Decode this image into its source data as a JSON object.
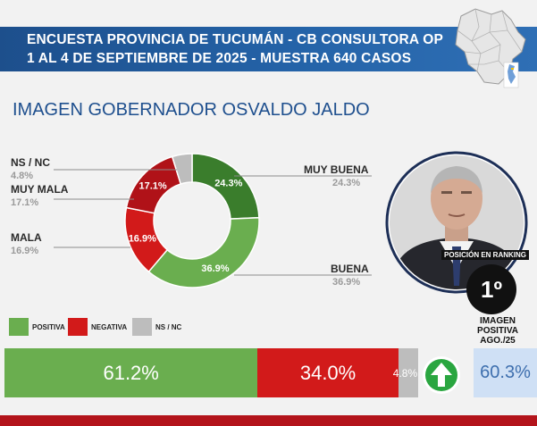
{
  "header": {
    "line1": "ENCUESTA PROVINCIA DE TUCUMÁN - CB CONSULTORA OP",
    "line2": "1 AL 4 DE SEPTIEMBRE DE 2025 - MUESTRA 640 CASOS"
  },
  "headline": "IMAGEN GOBERNADOR  OSVALDO JALDO",
  "colors": {
    "muy_buena": "#3a7d2c",
    "buena": "#6aae4f",
    "mala": "#d21a1a",
    "muy_mala": "#b01218",
    "ns_nc": "#bdbdbd",
    "header_blue": "#1d4f8c",
    "side_value_bg": "#cfe0f5"
  },
  "chart_data": [
    {
      "type": "pie",
      "variant": "donut",
      "categories": [
        "MUY BUENA",
        "BUENA",
        "MALA",
        "MUY MALA",
        "NS / NC"
      ],
      "values": [
        24.3,
        36.9,
        16.9,
        17.1,
        4.8
      ],
      "value_labels": [
        "24.3%",
        "36.9%",
        "16.9%",
        "17.1%",
        "4.8%"
      ]
    },
    {
      "type": "bar",
      "orientation": "horizontal",
      "stacked": true,
      "series": [
        {
          "name": "POSITIVA",
          "values": [
            61.2
          ],
          "label": "61.2%"
        },
        {
          "name": "NEGATIVA",
          "values": [
            34.0
          ],
          "label": "34.0%"
        },
        {
          "name": "NS / NC",
          "values": [
            4.8
          ],
          "label": "4.8%"
        }
      ]
    }
  ],
  "ranking": {
    "caption": "POSICIÓN EN RANKING",
    "value": "1º"
  },
  "side_indicator": {
    "title_line1": "IMAGEN",
    "title_line2": "POSITIVA",
    "title_line3": "AGO./25",
    "value": "60.3%",
    "arrow": "arrow-up-icon"
  }
}
